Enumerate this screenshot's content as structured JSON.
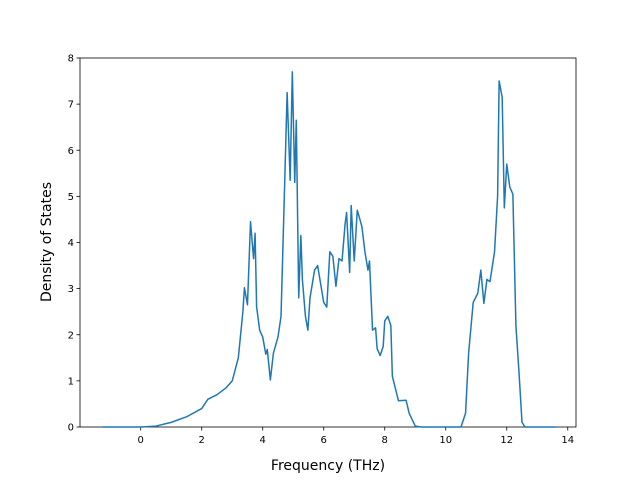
{
  "chart_data": {
    "type": "line",
    "xlabel": "Frequency (THz)",
    "ylabel": "Density of States",
    "x": [
      -1.25,
      0,
      0.5,
      1,
      1.5,
      2,
      2.2,
      2.5,
      2.8,
      3.0,
      3.2,
      3.35,
      3.4,
      3.5,
      3.6,
      3.7,
      3.75,
      3.8,
      3.9,
      4.0,
      4.1,
      4.15,
      4.25,
      4.35,
      4.5,
      4.6,
      4.7,
      4.8,
      4.9,
      4.97,
      5.05,
      5.1,
      5.18,
      5.25,
      5.3,
      5.4,
      5.48,
      5.55,
      5.7,
      5.8,
      6.0,
      6.1,
      6.2,
      6.3,
      6.4,
      6.5,
      6.6,
      6.7,
      6.75,
      6.85,
      6.9,
      7.0,
      7.1,
      7.25,
      7.35,
      7.45,
      7.5,
      7.6,
      7.7,
      7.75,
      7.85,
      7.95,
      8.0,
      8.1,
      8.2,
      8.25,
      8.4,
      8.45,
      8.7,
      8.8,
      9.0,
      9.2,
      10.5,
      10.65,
      10.75,
      10.9,
      11.05,
      11.15,
      11.25,
      11.35,
      11.45,
      11.6,
      11.7,
      11.75,
      11.85,
      11.92,
      12.0,
      12.1,
      12.2,
      12.3,
      12.4,
      12.5,
      12.6,
      13.6
    ],
    "values": [
      0,
      0,
      0.02,
      0.1,
      0.22,
      0.4,
      0.6,
      0.7,
      0.85,
      1.0,
      1.5,
      2.5,
      3.02,
      2.65,
      4.45,
      3.65,
      4.2,
      2.6,
      2.1,
      1.95,
      1.58,
      1.68,
      1.02,
      1.6,
      1.95,
      2.4,
      4.8,
      7.25,
      5.35,
      7.7,
      5.3,
      6.65,
      2.8,
      4.15,
      3.2,
      2.4,
      2.1,
      2.8,
      3.4,
      3.5,
      2.7,
      2.6,
      3.8,
      3.7,
      3.05,
      3.65,
      3.6,
      4.4,
      4.65,
      3.35,
      4.8,
      3.6,
      4.7,
      4.35,
      3.8,
      3.4,
      3.6,
      2.1,
      2.15,
      1.7,
      1.55,
      1.75,
      2.3,
      2.4,
      2.2,
      1.1,
      0.7,
      0.57,
      0.58,
      0.3,
      0.02,
      0,
      0,
      0.3,
      1.6,
      2.7,
      2.9,
      3.4,
      2.68,
      3.2,
      3.15,
      3.8,
      5,
      7.5,
      7.15,
      4.75,
      5.7,
      5.2,
      5.05,
      2.2,
      1.2,
      0.1,
      0,
      0
    ],
    "color": "#1f77b4",
    "xlim": [
      -1.99,
      14.27
    ],
    "xticks": [
      0,
      2,
      4,
      6,
      8,
      10,
      12,
      14
    ],
    "ylim": [
      0,
      8
    ],
    "yticks": [
      0,
      1,
      2,
      3,
      4,
      5,
      6,
      7,
      8
    ]
  }
}
